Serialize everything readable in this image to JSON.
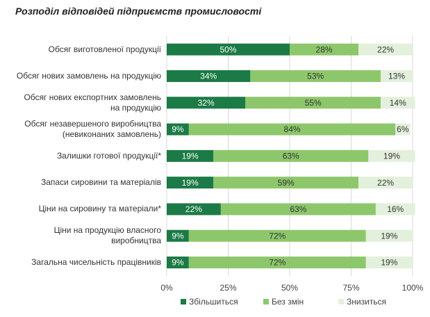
{
  "chart_data": {
    "type": "stacked-barh",
    "title": "Розподіл відповідей підприємств промисловості",
    "categories": [
      "Обсяг виготовленої продукції",
      "Обсяг нових замовлень на продукцію",
      "Обсяг нових експортних замовлень на продукцію",
      "Обсяг незавершеного виробництва (невиконаних замовлень)",
      "Залишки готової продукції*",
      "Запаси сировини та матеріалів",
      "Ціни на сировину та матеріали*",
      "Ціни на продукцію власного виробництва",
      "Загальна чисельність працівників"
    ],
    "series": [
      {
        "name": "Збільшиться",
        "color": "#1b7a45",
        "values": [
          50,
          34,
          32,
          9,
          19,
          19,
          22,
          9,
          9
        ],
        "value_labels": [
          "50%",
          "34%",
          "32%",
          "9%",
          "19%",
          "19%",
          "22%",
          "9%",
          "9%"
        ]
      },
      {
        "name": "Без змін",
        "color": "#8dc76b",
        "values": [
          28,
          53,
          55,
          84,
          63,
          59,
          63,
          72,
          72
        ],
        "value_labels": [
          "28%",
          "53%",
          "55%",
          "84%",
          "63%",
          "59%",
          "63%",
          "72%",
          "72%"
        ]
      },
      {
        "name": "Знизиться",
        "color": "#e3f0dc",
        "values": [
          22,
          13,
          14,
          6,
          19,
          22,
          16,
          19,
          19
        ],
        "value_labels": [
          "22%",
          "13%",
          "14%",
          "6%",
          "19%",
          "22%",
          "16%",
          "19%",
          "19%"
        ]
      }
    ],
    "xlim": [
      0,
      100
    ],
    "xticks": [
      {
        "value": 0,
        "label": "0%"
      },
      {
        "value": 25,
        "label": "25%"
      },
      {
        "value": 50,
        "label": "50%"
      },
      {
        "value": 75,
        "label": "75%"
      },
      {
        "value": 100,
        "label": "100%"
      }
    ],
    "grid": true,
    "legend": "bottom"
  }
}
